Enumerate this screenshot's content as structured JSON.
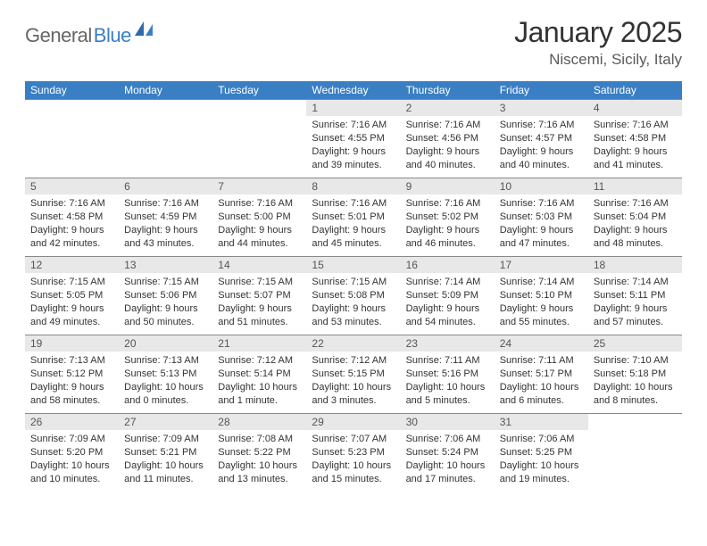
{
  "brand": {
    "part1": "General",
    "part2": "Blue"
  },
  "title": "January 2025",
  "location": "Niscemi, Sicily, Italy",
  "colors": {
    "header_blue": "#3a7fc4",
    "day_num_bg": "#e8e8e8",
    "text": "#333333",
    "logo_gray": "#666666"
  },
  "weekdays": [
    "Sunday",
    "Monday",
    "Tuesday",
    "Wednesday",
    "Thursday",
    "Friday",
    "Saturday"
  ],
  "weeks": [
    [
      null,
      null,
      null,
      {
        "d": "1",
        "sr": "7:16 AM",
        "ss": "4:55 PM",
        "dl": "9 hours and 39 minutes."
      },
      {
        "d": "2",
        "sr": "7:16 AM",
        "ss": "4:56 PM",
        "dl": "9 hours and 40 minutes."
      },
      {
        "d": "3",
        "sr": "7:16 AM",
        "ss": "4:57 PM",
        "dl": "9 hours and 40 minutes."
      },
      {
        "d": "4",
        "sr": "7:16 AM",
        "ss": "4:58 PM",
        "dl": "9 hours and 41 minutes."
      }
    ],
    [
      {
        "d": "5",
        "sr": "7:16 AM",
        "ss": "4:58 PM",
        "dl": "9 hours and 42 minutes."
      },
      {
        "d": "6",
        "sr": "7:16 AM",
        "ss": "4:59 PM",
        "dl": "9 hours and 43 minutes."
      },
      {
        "d": "7",
        "sr": "7:16 AM",
        "ss": "5:00 PM",
        "dl": "9 hours and 44 minutes."
      },
      {
        "d": "8",
        "sr": "7:16 AM",
        "ss": "5:01 PM",
        "dl": "9 hours and 45 minutes."
      },
      {
        "d": "9",
        "sr": "7:16 AM",
        "ss": "5:02 PM",
        "dl": "9 hours and 46 minutes."
      },
      {
        "d": "10",
        "sr": "7:16 AM",
        "ss": "5:03 PM",
        "dl": "9 hours and 47 minutes."
      },
      {
        "d": "11",
        "sr": "7:16 AM",
        "ss": "5:04 PM",
        "dl": "9 hours and 48 minutes."
      }
    ],
    [
      {
        "d": "12",
        "sr": "7:15 AM",
        "ss": "5:05 PM",
        "dl": "9 hours and 49 minutes."
      },
      {
        "d": "13",
        "sr": "7:15 AM",
        "ss": "5:06 PM",
        "dl": "9 hours and 50 minutes."
      },
      {
        "d": "14",
        "sr": "7:15 AM",
        "ss": "5:07 PM",
        "dl": "9 hours and 51 minutes."
      },
      {
        "d": "15",
        "sr": "7:15 AM",
        "ss": "5:08 PM",
        "dl": "9 hours and 53 minutes."
      },
      {
        "d": "16",
        "sr": "7:14 AM",
        "ss": "5:09 PM",
        "dl": "9 hours and 54 minutes."
      },
      {
        "d": "17",
        "sr": "7:14 AM",
        "ss": "5:10 PM",
        "dl": "9 hours and 55 minutes."
      },
      {
        "d": "18",
        "sr": "7:14 AM",
        "ss": "5:11 PM",
        "dl": "9 hours and 57 minutes."
      }
    ],
    [
      {
        "d": "19",
        "sr": "7:13 AM",
        "ss": "5:12 PM",
        "dl": "9 hours and 58 minutes."
      },
      {
        "d": "20",
        "sr": "7:13 AM",
        "ss": "5:13 PM",
        "dl": "10 hours and 0 minutes."
      },
      {
        "d": "21",
        "sr": "7:12 AM",
        "ss": "5:14 PM",
        "dl": "10 hours and 1 minute."
      },
      {
        "d": "22",
        "sr": "7:12 AM",
        "ss": "5:15 PM",
        "dl": "10 hours and 3 minutes."
      },
      {
        "d": "23",
        "sr": "7:11 AM",
        "ss": "5:16 PM",
        "dl": "10 hours and 5 minutes."
      },
      {
        "d": "24",
        "sr": "7:11 AM",
        "ss": "5:17 PM",
        "dl": "10 hours and 6 minutes."
      },
      {
        "d": "25",
        "sr": "7:10 AM",
        "ss": "5:18 PM",
        "dl": "10 hours and 8 minutes."
      }
    ],
    [
      {
        "d": "26",
        "sr": "7:09 AM",
        "ss": "5:20 PM",
        "dl": "10 hours and 10 minutes."
      },
      {
        "d": "27",
        "sr": "7:09 AM",
        "ss": "5:21 PM",
        "dl": "10 hours and 11 minutes."
      },
      {
        "d": "28",
        "sr": "7:08 AM",
        "ss": "5:22 PM",
        "dl": "10 hours and 13 minutes."
      },
      {
        "d": "29",
        "sr": "7:07 AM",
        "ss": "5:23 PM",
        "dl": "10 hours and 15 minutes."
      },
      {
        "d": "30",
        "sr": "7:06 AM",
        "ss": "5:24 PM",
        "dl": "10 hours and 17 minutes."
      },
      {
        "d": "31",
        "sr": "7:06 AM",
        "ss": "5:25 PM",
        "dl": "10 hours and 19 minutes."
      },
      null
    ]
  ],
  "labels": {
    "sunrise": "Sunrise: ",
    "sunset": "Sunset: ",
    "daylight": "Daylight: "
  }
}
